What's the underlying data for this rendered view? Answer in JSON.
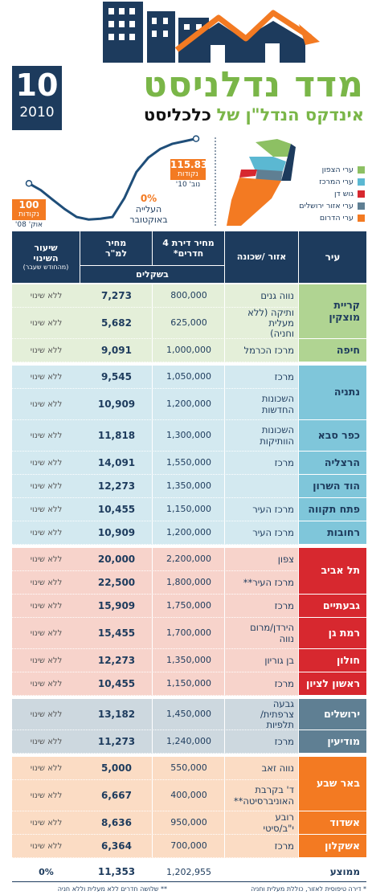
{
  "header": {
    "issue_number": "10",
    "year": "2010",
    "title": "מדד נדלניסט",
    "subtitle_prefix": "אינדקס הנדל\"ן של",
    "subtitle_brand": "כלכליסט"
  },
  "index_chart": {
    "values": [
      100,
      97.6,
      94.2,
      90.9,
      88.1,
      87.2,
      87.5,
      88.1,
      94.8,
      104.0,
      109.1,
      112.2,
      114.0,
      114.9,
      115.83
    ],
    "ylim": [
      85,
      118
    ],
    "color": "#1f4e79",
    "start_unit": "נקודות",
    "start_date": "אוק' 08'",
    "end_unit": "נקודות",
    "end_date": "נוב' 10'",
    "change": "0%",
    "change_label_1": "העלייה",
    "change_label_2": "באוקטובר"
  },
  "legend": [
    {
      "label": "ערי הצפון",
      "color": "#8dc063"
    },
    {
      "label": "ערי המרכז",
      "color": "#5bb8d2"
    },
    {
      "label": "גוש דן",
      "color": "#d7282f"
    },
    {
      "label": "ערי אזור ירושלים",
      "color": "#5f7f93"
    },
    {
      "label": "ערי הדרום",
      "color": "#f37a22"
    }
  ],
  "table": {
    "headers": {
      "city": "עיר",
      "area": "אזור /שכונה",
      "price": "מחיר דירת 4 חדרים*",
      "per_sqm": "מחיר למ\"ר",
      "change": "שיעור השינוי",
      "change_note": "(מהחודש שעבר)",
      "currency": "בשקלים"
    },
    "regions": [
      {
        "row_color": "#e4efd9",
        "city_color": "#b0d492",
        "city_text": "#1d3b5d",
        "cities": [
          {
            "name": "קריית מוצקין",
            "rows": [
              {
                "area": "נווה גנים",
                "price": "800,000",
                "per_sqm": "7,273",
                "change": "ללא שינוי"
              },
              {
                "area": "ותיקה (ללא מעלית וחניה)",
                "price": "625,000",
                "per_sqm": "5,682",
                "change": "ללא שינוי"
              }
            ]
          },
          {
            "name": "חיפה",
            "rows": [
              {
                "area": "מרכז הכרמל",
                "price": "1,000,000",
                "per_sqm": "9,091",
                "change": "ללא שינוי"
              }
            ]
          }
        ]
      },
      {
        "row_color": "#d3e9f0",
        "city_color": "#7fc6da",
        "city_text": "#1d3b5d",
        "cities": [
          {
            "name": "נתניה",
            "rows": [
              {
                "area": "מרכז",
                "price": "1,050,000",
                "per_sqm": "9,545",
                "change": "ללא שינוי"
              },
              {
                "area": "השכונות החדשות",
                "price": "1,200,000",
                "per_sqm": "10,909",
                "change": "ללא שינוי"
              }
            ]
          },
          {
            "name": "כפר סבא",
            "rows": [
              {
                "area": "השכונות הוותיקות",
                "price": "1,300,000",
                "per_sqm": "11,818",
                "change": "ללא שינוי"
              }
            ]
          },
          {
            "name": "הרצליה",
            "rows": [
              {
                "area": "מרכז",
                "price": "1,550,000",
                "per_sqm": "14,091",
                "change": "ללא שינוי"
              }
            ]
          },
          {
            "name": "הוד השרון",
            "rows": [
              {
                "area": null,
                "price": "1,350,000",
                "per_sqm": "12,273",
                "change": "ללא שינוי"
              }
            ]
          },
          {
            "name": "פתח תקווה",
            "rows": [
              {
                "area": "מרכז העיר",
                "price": "1,150,000",
                "per_sqm": "10,455",
                "change": "ללא שינוי"
              }
            ]
          },
          {
            "name": "רחובות",
            "rows": [
              {
                "area": "מרכז העיר",
                "price": "1,200,000",
                "per_sqm": "10,909",
                "change": "ללא שינוי"
              }
            ]
          }
        ]
      },
      {
        "row_color": "#f7d3cb",
        "city_color": "#d7282f",
        "city_text": "#ffffff",
        "cities": [
          {
            "name": "תל אביב",
            "rows": [
              {
                "area": "צפון",
                "price": "2,200,000",
                "per_sqm": "20,000",
                "change": "ללא שינוי"
              },
              {
                "area": "מרכז העיר**",
                "price": "1,800,000",
                "per_sqm": "22,500",
                "change": "ללא שינוי"
              }
            ]
          },
          {
            "name": "גבעתיים",
            "rows": [
              {
                "area": "מרכז",
                "price": "1,750,000",
                "per_sqm": "15,909",
                "change": "ללא שינוי"
              }
            ]
          },
          {
            "name": "רמת גן",
            "rows": [
              {
                "area": "הירדן/מרום נווה",
                "price": "1,700,000",
                "per_sqm": "15,455",
                "change": "ללא שינוי"
              }
            ]
          },
          {
            "name": "חולון",
            "rows": [
              {
                "area": "בן גוריון",
                "price": "1,350,000",
                "per_sqm": "12,273",
                "change": "ללא שינוי"
              }
            ]
          },
          {
            "name": "ראשון לציון",
            "rows": [
              {
                "area": "מרכז",
                "price": "1,150,000",
                "per_sqm": "10,455",
                "change": "ללא שינוי"
              }
            ]
          }
        ]
      },
      {
        "row_color": "#cdd8df",
        "city_color": "#5f7f93",
        "city_text": "#ffffff",
        "cities": [
          {
            "name": "ירושלים",
            "rows": [
              {
                "area": "גבעה צרפתית/ תלפיות",
                "price": "1,450,000",
                "per_sqm": "13,182",
                "change": "ללא שינוי"
              }
            ]
          },
          {
            "name": "מודיעין",
            "rows": [
              {
                "area": "מרכז",
                "price": "1,240,000",
                "per_sqm": "11,273",
                "change": "ללא שינוי"
              }
            ]
          }
        ]
      },
      {
        "row_color": "#fbdcc4",
        "city_color": "#f37a22",
        "city_text": "#ffffff",
        "cities": [
          {
            "name": "באר שבע",
            "rows": [
              {
                "area": "נווה זאב",
                "price": "550,000",
                "per_sqm": "5,000",
                "change": "ללא שינוי"
              },
              {
                "area": "ד' בקרבת האוניברסיטה**",
                "price": "400,000",
                "per_sqm": "6,667",
                "change": "ללא שינוי"
              }
            ]
          },
          {
            "name": "אשדוד",
            "rows": [
              {
                "area": "רובע י\"ב/סיטי",
                "price": "950,000",
                "per_sqm": "8,636",
                "change": "ללא שינוי"
              }
            ]
          },
          {
            "name": "אשקלון",
            "rows": [
              {
                "area": "מרכז",
                "price": "700,000",
                "per_sqm": "6,364",
                "change": "ללא שינוי"
              }
            ]
          }
        ]
      }
    ],
    "average": {
      "label": "ממוצע",
      "price": "1,202,955",
      "per_sqm": "11,353",
      "change": "0%"
    }
  },
  "footnotes": {
    "one_star": "* דירה טיפוסית לאזור, כוללת מעלית וחניה",
    "two_star": "** שלושה חדרים ללא מעלית וללא חניה"
  }
}
